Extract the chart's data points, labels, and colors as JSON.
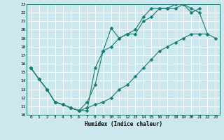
{
  "xlabel": "Humidex (Indice chaleur)",
  "xlim": [
    -0.5,
    23.5
  ],
  "ylim": [
    10,
    23
  ],
  "xticks": [
    0,
    1,
    2,
    3,
    4,
    5,
    6,
    7,
    8,
    9,
    10,
    11,
    12,
    13,
    14,
    15,
    16,
    17,
    18,
    19,
    20,
    21,
    22,
    23
  ],
  "yticks": [
    10,
    11,
    12,
    13,
    14,
    15,
    16,
    17,
    18,
    19,
    20,
    21,
    22,
    23
  ],
  "bg_color": "#cce8ee",
  "line_color": "#1a7a6e",
  "grid_color": "#ffffff",
  "lines": [
    {
      "x": [
        0,
        1,
        2,
        3,
        4,
        5,
        6,
        7,
        8,
        9,
        10,
        11,
        12,
        13,
        14,
        15,
        16,
        17,
        18,
        19,
        20,
        21,
        22,
        23
      ],
      "y": [
        15.5,
        14.2,
        13.0,
        11.5,
        11.2,
        10.8,
        10.5,
        10.8,
        11.2,
        11.5,
        12.0,
        13.0,
        13.5,
        14.5,
        15.5,
        16.5,
        17.5,
        18.0,
        18.5,
        19.0,
        19.5,
        19.5,
        19.5,
        19.0
      ]
    },
    {
      "x": [
        0,
        1,
        2,
        3,
        4,
        5,
        6,
        7,
        8,
        9,
        10,
        11,
        12,
        13,
        14,
        15,
        16,
        17,
        18,
        19,
        20,
        21,
        22
      ],
      "y": [
        15.5,
        14.2,
        13.0,
        11.5,
        11.2,
        10.8,
        10.5,
        11.5,
        13.5,
        17.5,
        20.2,
        19.0,
        19.5,
        19.5,
        21.0,
        21.5,
        22.5,
        22.5,
        22.5,
        23.0,
        22.5,
        22.0,
        19.5
      ]
    },
    {
      "x": [
        0,
        1,
        2,
        3,
        4,
        5,
        6,
        7,
        8,
        9,
        10,
        11,
        12,
        13,
        14,
        15,
        16,
        17,
        18,
        19,
        20,
        21
      ],
      "y": [
        15.5,
        14.2,
        13.0,
        11.5,
        11.2,
        10.8,
        10.5,
        10.5,
        15.5,
        17.5,
        18.0,
        19.0,
        19.5,
        20.0,
        21.5,
        22.5,
        22.5,
        22.5,
        23.0,
        23.0,
        22.0,
        22.5
      ]
    }
  ],
  "markersize": 2.5
}
